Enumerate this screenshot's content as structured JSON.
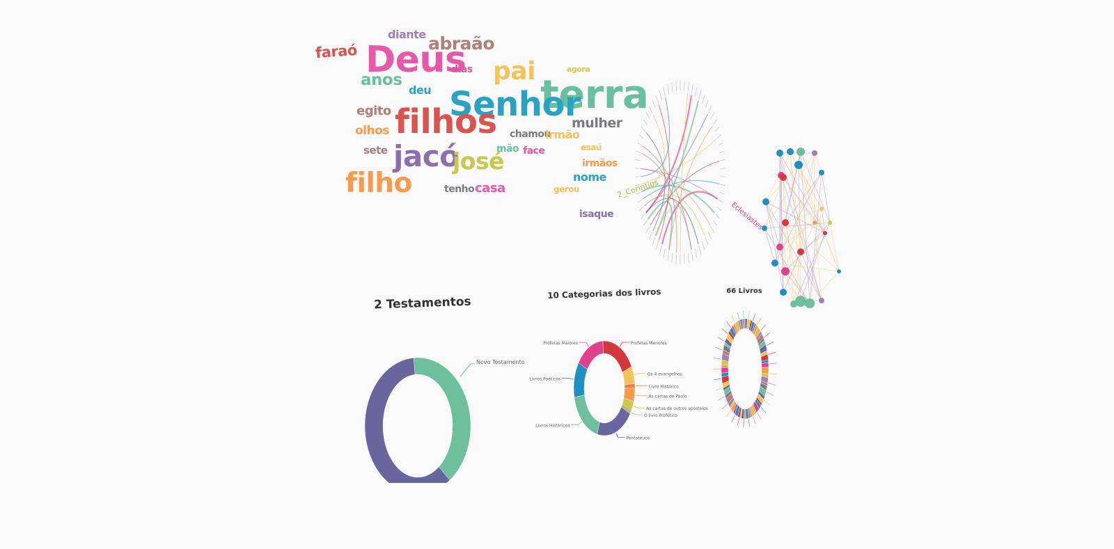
{
  "chart_data": [
    {
      "type": "wordcloud",
      "words": [
        {
          "text": "diante",
          "color": "#a07fb8"
        },
        {
          "text": "faraó",
          "color": "#d9534f"
        },
        {
          "text": "Deus",
          "color": "#e45aa8"
        },
        {
          "text": "abraão",
          "color": "#b08078"
        },
        {
          "text": "dias",
          "color": "#d0579a"
        },
        {
          "text": "pai",
          "color": "#f3c25a"
        },
        {
          "text": "agora",
          "color": "#d6c84a"
        },
        {
          "text": "terra",
          "color": "#69bfa0"
        },
        {
          "text": "anos",
          "color": "#69bfa0"
        },
        {
          "text": "deu",
          "color": "#2aa3c2"
        },
        {
          "text": "Senhor",
          "color": "#2aa3c2"
        },
        {
          "text": "egito",
          "color": "#b08078"
        },
        {
          "text": "filhos",
          "color": "#d9534f"
        },
        {
          "text": "mulher",
          "color": "#7a7a84"
        },
        {
          "text": "chamou",
          "color": "#7a7a84"
        },
        {
          "text": "irmão",
          "color": "#f3c25a"
        },
        {
          "text": "olhos",
          "color": "#f59a4e"
        },
        {
          "text": "sete",
          "color": "#a08080"
        },
        {
          "text": "jacó",
          "color": "#8e6fae"
        },
        {
          "text": "josé",
          "color": "#c9c84a"
        },
        {
          "text": "mão",
          "color": "#69bfa0"
        },
        {
          "text": "face",
          "color": "#e45aa8"
        },
        {
          "text": "esaú",
          "color": "#f3c25a"
        },
        {
          "text": "irmãos",
          "color": "#f59a4e"
        },
        {
          "text": "nome",
          "color": "#2aa3c2"
        },
        {
          "text": "filho",
          "color": "#f59a4e"
        },
        {
          "text": "tenho",
          "color": "#7a7a84"
        },
        {
          "text": "casa",
          "color": "#e45aa8"
        },
        {
          "text": "gerou",
          "color": "#f3c25a"
        },
        {
          "text": "isaque",
          "color": "#8e6fae"
        }
      ]
    },
    {
      "type": "chord",
      "labels": [
        "2_Corintios",
        "Eclesiastes"
      ]
    },
    {
      "type": "network"
    },
    {
      "type": "pie",
      "title": "2 Testamentos",
      "slices": [
        {
          "label": "Novo Testamento",
          "value": 27,
          "color": "#6ebf9c"
        },
        {
          "label": "",
          "value": 39,
          "color": "#68669c"
        }
      ]
    },
    {
      "type": "pie",
      "title": "10 Categorias dos livros",
      "slices": [
        {
          "label": "Profetas Menores",
          "value": 12,
          "color": "#d2393f"
        },
        {
          "label": "Os 4 evangelhos",
          "value": 4,
          "color": "#f3c25a"
        },
        {
          "label": "Livro Histórico",
          "value": 1,
          "color": "#f07b3f"
        },
        {
          "label": "As cartas de Paulo",
          "value": 3,
          "color": "#f59a4e"
        },
        {
          "label": "As cartas de outros apóstolos",
          "value": 2,
          "color": "#c9c84a"
        },
        {
          "label": "O livro Profético",
          "value": 1,
          "color": "#b6b86a"
        },
        {
          "label": "Pentateuco",
          "value": 13,
          "color": "#68669c"
        },
        {
          "label": "Livros Históricos",
          "value": 12,
          "color": "#6ebf9c"
        },
        {
          "label": "Livros Poéticos",
          "value": 8,
          "color": "#1f8fc0"
        },
        {
          "label": "Profetas Maiores",
          "value": 10,
          "color": "#e2408f"
        }
      ]
    },
    {
      "type": "pie",
      "title": "66 Livros",
      "slice_count": 66,
      "palette": [
        "#6ebf9c",
        "#68669c",
        "#f3c25a",
        "#d2393f",
        "#1f8fc0",
        "#e2408f",
        "#f59a4e",
        "#c9c84a",
        "#a07fb8",
        "#b08078",
        "#7a7a84"
      ]
    }
  ]
}
